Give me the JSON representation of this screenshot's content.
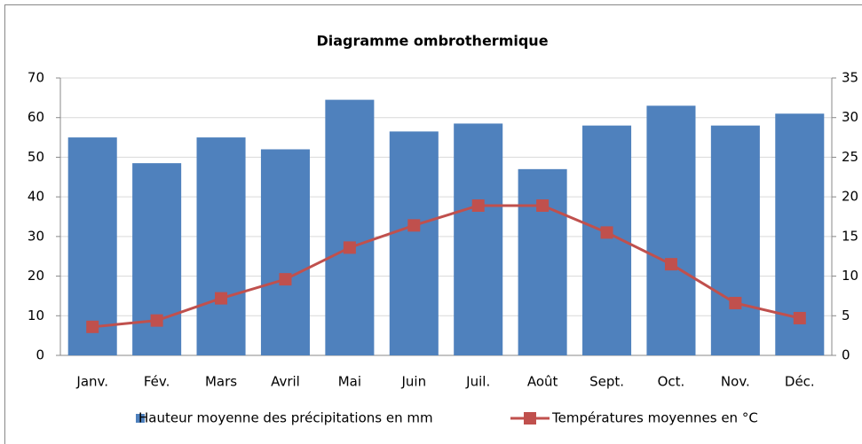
{
  "chart_data": {
    "type": "combo",
    "title": "Diagramme ombrothermique",
    "categories": [
      "Janv.",
      "Fév.",
      "Mars",
      "Avril",
      "Mai",
      "Juin",
      "Juil.",
      "Août",
      "Sept.",
      "Oct.",
      "Nov.",
      "Déc."
    ],
    "series": [
      {
        "name": "Hauteur moyenne des précipitations en mm",
        "type": "bar",
        "color": "#4f81bd",
        "values": [
          55,
          48.5,
          55,
          52,
          64.5,
          56.5,
          58.5,
          47,
          58,
          63,
          58,
          61
        ]
      },
      {
        "name": "Températures moyennes en °C",
        "type": "line",
        "axis": "y2",
        "color": "#c0504d",
        "values": [
          3.6,
          4.4,
          7.2,
          9.6,
          13.6,
          16.4,
          18.9,
          18.9,
          15.5,
          11.5,
          6.6,
          4.7
        ]
      }
    ],
    "ylim": [
      0,
      70
    ],
    "yticks": [
      0,
      10,
      20,
      30,
      40,
      50,
      60,
      70
    ],
    "y2lim": [
      0,
      35
    ],
    "y2ticks": [
      0,
      5,
      10,
      15,
      20,
      25,
      30,
      35
    ],
    "grid": true,
    "legend": "bottom"
  }
}
